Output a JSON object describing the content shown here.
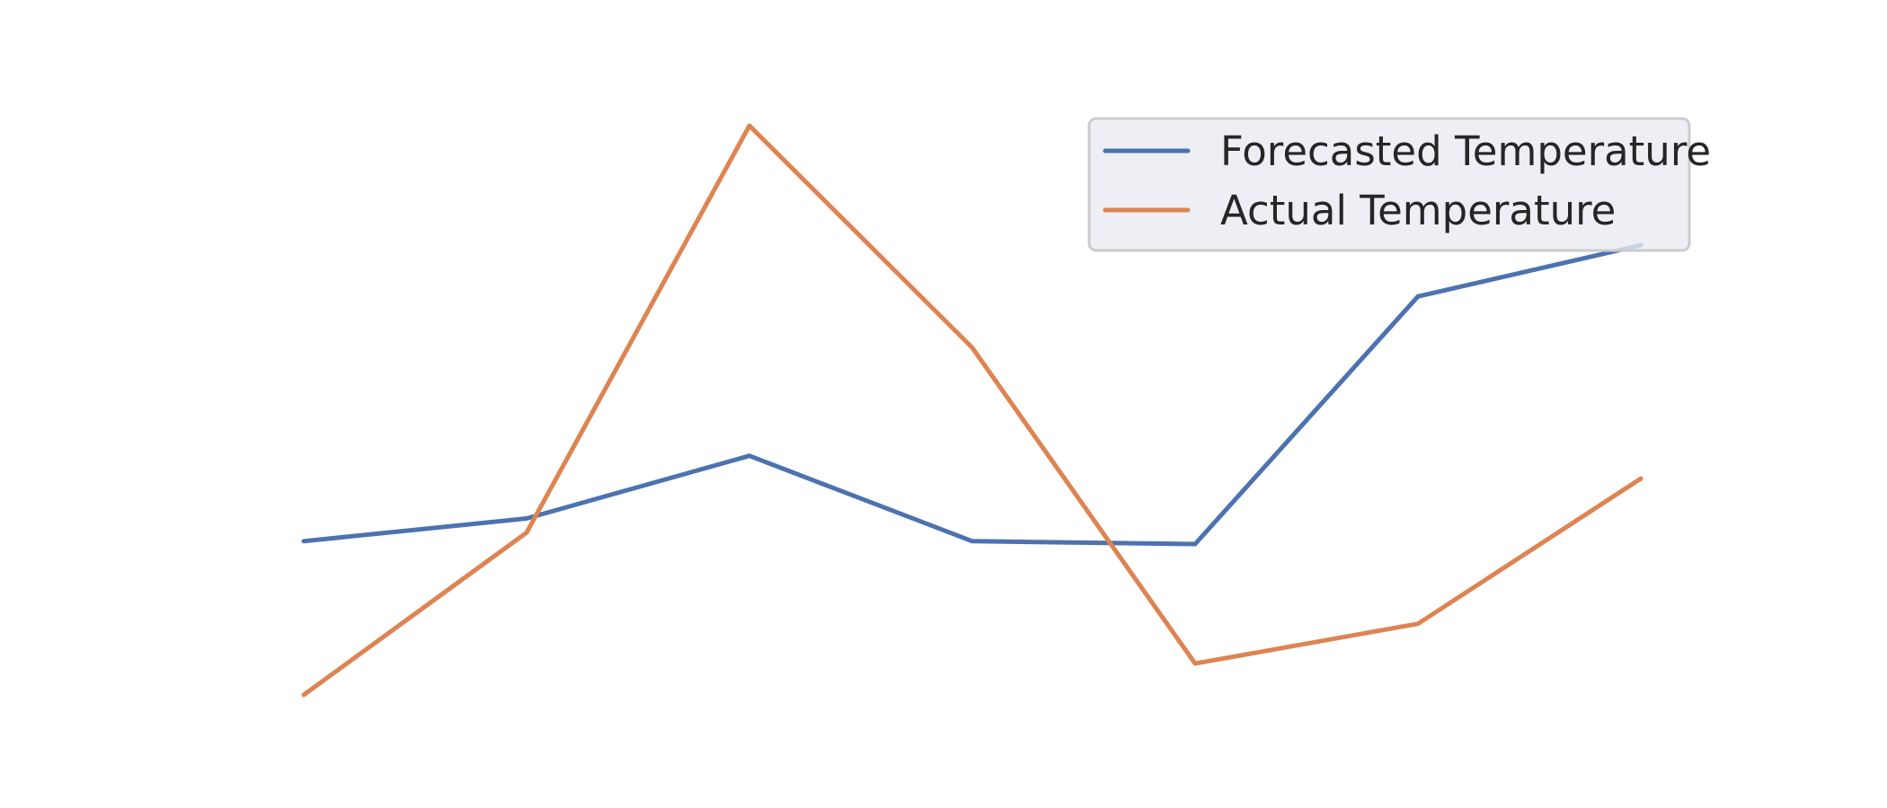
{
  "chart_data": {
    "type": "line",
    "title": "",
    "xlabel": "",
    "ylabel": "",
    "grid": false,
    "axes_visible": false,
    "legend_placement": "top-right",
    "x": [
      1,
      2,
      3,
      4,
      5,
      6,
      7
    ],
    "ylim": [
      0,
      100
    ],
    "series": [
      {
        "name": "Forecasted Temperature",
        "color": "#4c72b0",
        "values": [
          27,
          31,
          42,
          27,
          26.5,
          70,
          79
        ]
      },
      {
        "name": "Actual Temperature",
        "color": "#dd8452",
        "values": [
          0,
          28.5,
          100,
          61,
          5.5,
          12.5,
          38
        ]
      }
    ]
  }
}
